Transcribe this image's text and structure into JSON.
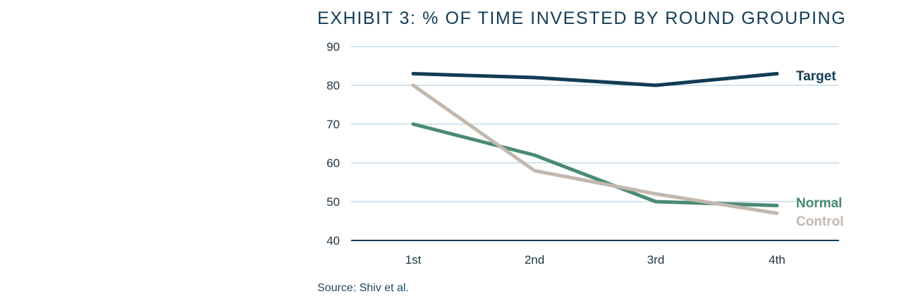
{
  "title": "EXHIBIT 3: % OF TIME INVESTED BY ROUND GROUPING",
  "source": "Source: Shiv et al.",
  "chart_data": {
    "type": "line",
    "title": "EXHIBIT 3: % OF TIME INVESTED BY ROUND GROUPING",
    "xlabel": "",
    "ylabel": "",
    "categories": [
      "1st",
      "2nd",
      "3rd",
      "4th"
    ],
    "ylim": [
      40,
      90
    ],
    "yticks": [
      40,
      50,
      60,
      70,
      80,
      90
    ],
    "grid": true,
    "legend": "direct labels at line ends (right)",
    "series": [
      {
        "name": "Target",
        "values": [
          83,
          82,
          80,
          83
        ],
        "color": "#123c55"
      },
      {
        "name": "Normal",
        "values": [
          70,
          62,
          50,
          49
        ],
        "color": "#4a8a75"
      },
      {
        "name": "Control",
        "values": [
          80,
          58,
          52,
          47
        ],
        "color": "#c2b8ae"
      }
    ]
  }
}
